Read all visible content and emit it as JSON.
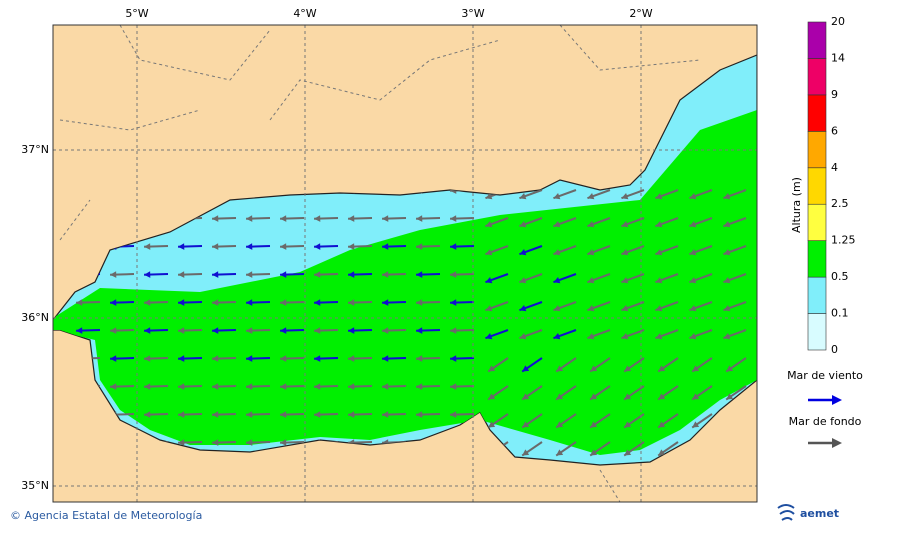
{
  "map": {
    "lon_labels": [
      "5°W",
      "4°W",
      "3°W",
      "2°W"
    ],
    "lat_labels": [
      "37°N",
      "36°N",
      "35°N"
    ]
  },
  "colorbar": {
    "title": "Altura (m)",
    "levels": [
      0,
      0.1,
      0.5,
      1.25,
      2.5,
      4,
      6,
      9,
      14,
      20
    ],
    "colors": [
      "#d8fcff",
      "#80eefa",
      "#00f000",
      "#ffff40",
      "#ffd800",
      "#ffa800",
      "#ff0000",
      "#ee0066",
      "#aa00aa"
    ]
  },
  "legend": {
    "wind_sea": "Mar de viento",
    "swell": "Mar de fondo"
  },
  "footer": {
    "credit": "© Agencia Estatal de Meteorología",
    "logo": "aemet"
  }
}
